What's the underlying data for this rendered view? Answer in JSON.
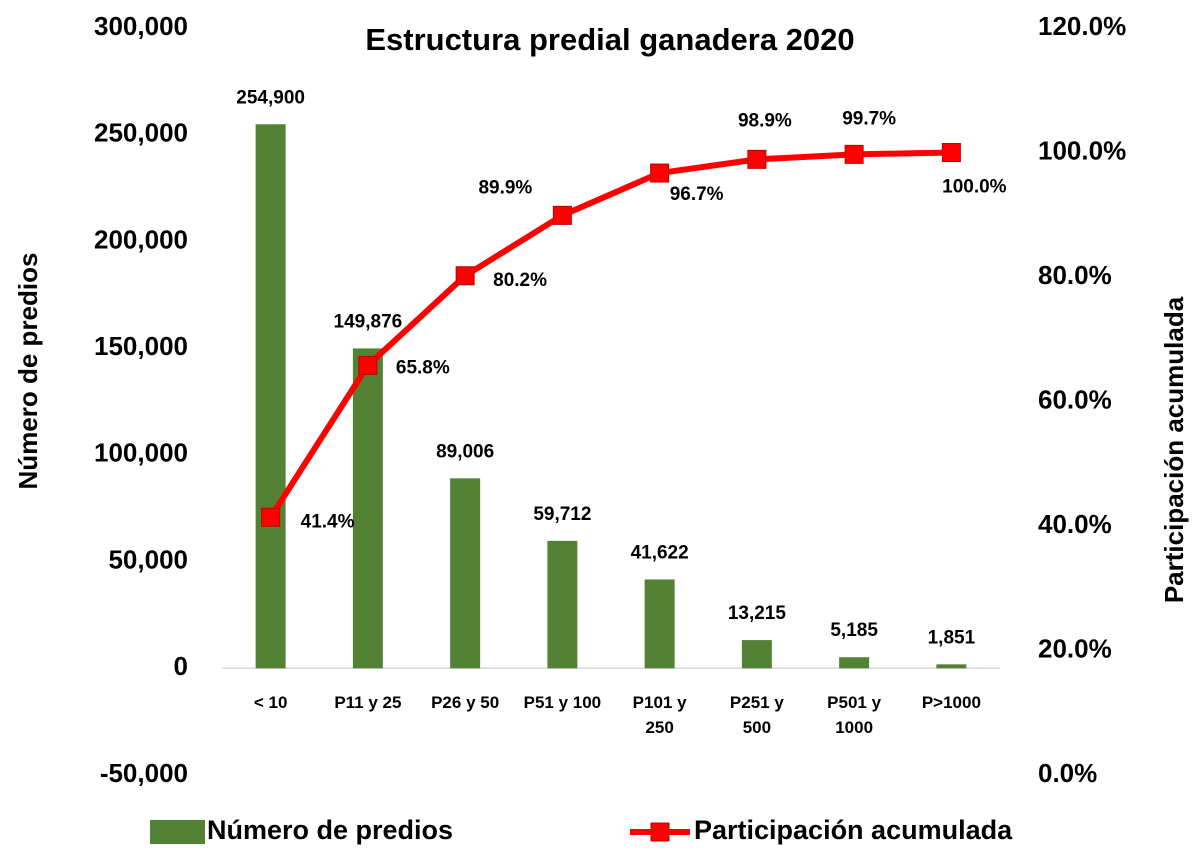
{
  "chart_data": {
    "type": "bar-line",
    "title": "Estructura predial ganadera 2020",
    "y_label": "Número de predios",
    "y2_label": "Participación acumulada",
    "categories": [
      "< 10",
      "P11 y 25",
      "P26 y 50",
      "P51 y 100",
      "P101 y 250",
      "P251 y 500",
      "P501 y 1000",
      "P>1000"
    ],
    "series": [
      {
        "name": "Número de predios",
        "type": "bar",
        "color": "#548235",
        "values": [
          254900,
          149876,
          89006,
          59712,
          41622,
          13215,
          5185,
          1851
        ],
        "value_labels": [
          "254,900",
          "149,876",
          "89,006",
          "59,712",
          "41,622",
          "13,215",
          "5,185",
          "1,851"
        ]
      },
      {
        "name": "Participación acumulada",
        "type": "line",
        "color": "#ff0000",
        "axis": "y2",
        "values": [
          41.4,
          65.8,
          80.2,
          89.9,
          96.7,
          98.9,
          99.7,
          100.0
        ],
        "value_labels": [
          "41.4%",
          "65.8%",
          "80.2%",
          "89.9%",
          "96.7%",
          "98.9%",
          "99.7%",
          "100.0%"
        ]
      }
    ],
    "ylim": [
      -50000,
      300000
    ],
    "yticks": [
      {
        "value": -50000,
        "label": "-50,000"
      },
      0,
      {
        "value": 50000,
        "label": "50,000"
      },
      {
        "value": 100000,
        "label": "100,000"
      },
      {
        "value": 150000,
        "label": "150,000"
      },
      {
        "value": 200000,
        "label": "200,000"
      },
      {
        "value": 250000,
        "label": "250,000"
      },
      {
        "value": 300000,
        "label": "300,000"
      }
    ],
    "y2lim": [
      0,
      120
    ],
    "y2ticks": [
      {
        "value": 0,
        "label": "0.0%"
      },
      {
        "value": 20,
        "label": "20.0%"
      },
      {
        "value": 40,
        "label": "40.0%"
      },
      {
        "value": 60,
        "label": "60.0%"
      },
      {
        "value": 80,
        "label": "80.0%"
      },
      {
        "value": 100,
        "label": "100.0%"
      },
      {
        "value": 120,
        "label": "120.0%"
      }
    ],
    "grid": false,
    "legend": "bottom"
  }
}
